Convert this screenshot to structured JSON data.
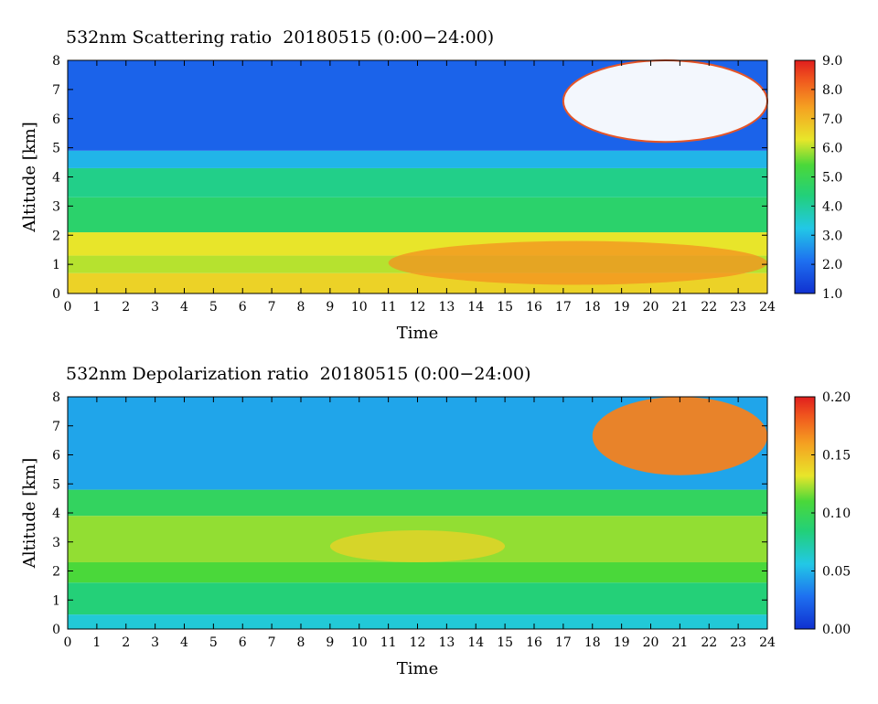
{
  "chart_data": [
    {
      "type": "heatmap",
      "title": "532nm Scattering ratio  20180515 (0:00−24:00)",
      "xlabel": "Time",
      "ylabel": "Altitude [km]",
      "xlim": [
        0,
        24
      ],
      "ylim": [
        0,
        8
      ],
      "x_ticks": [
        "0",
        "1",
        "2",
        "3",
        "4",
        "5",
        "6",
        "7",
        "8",
        "9",
        "10",
        "11",
        "12",
        "13",
        "14",
        "15",
        "16",
        "17",
        "18",
        "19",
        "20",
        "21",
        "22",
        "23",
        "24"
      ],
      "y_ticks": [
        "0",
        "1",
        "2",
        "3",
        "4",
        "5",
        "6",
        "7",
        "8"
      ],
      "colorbar": {
        "min": 1.0,
        "max": 9.0,
        "ticks": [
          "1.0",
          "2.0",
          "3.0",
          "4.0",
          "5.0",
          "6.0",
          "7.0",
          "8.0",
          "9.0"
        ]
      },
      "layers": [
        {
          "altitude_km": [
            0.0,
            0.7
          ],
          "value": 6.6
        },
        {
          "altitude_km": [
            0.7,
            1.3
          ],
          "value": 6.0
        },
        {
          "altitude_km": [
            1.3,
            2.1
          ],
          "value": 6.3
        },
        {
          "altitude_km": [
            2.1,
            3.3
          ],
          "value": 4.6
        },
        {
          "altitude_km": [
            3.3,
            4.3
          ],
          "value": 4.2
        },
        {
          "altitude_km": [
            4.3,
            4.9
          ],
          "value": 3.0
        },
        {
          "altitude_km": [
            4.9,
            8.0
          ],
          "value": 1.9
        }
      ],
      "features": [
        {
          "label": "cloud",
          "time_h": [
            17,
            24
          ],
          "altitude_km": [
            5.2,
            8.0
          ],
          "value": ">9"
        },
        {
          "label": "enhanced",
          "time_h": [
            11,
            24
          ],
          "altitude_km": [
            0.3,
            1.8
          ],
          "value": 7.6
        }
      ]
    },
    {
      "type": "heatmap",
      "title": "532nm Depolarization ratio  20180515 (0:00−24:00)",
      "xlabel": "Time",
      "ylabel": "Altitude [km]",
      "xlim": [
        0,
        24
      ],
      "ylim": [
        0,
        8
      ],
      "x_ticks": [
        "0",
        "1",
        "2",
        "3",
        "4",
        "5",
        "6",
        "7",
        "8",
        "9",
        "10",
        "11",
        "12",
        "13",
        "14",
        "15",
        "16",
        "17",
        "18",
        "19",
        "20",
        "21",
        "22",
        "23",
        "24"
      ],
      "y_ticks": [
        "0",
        "1",
        "2",
        "3",
        "4",
        "5",
        "6",
        "7",
        "8"
      ],
      "colorbar": {
        "min": 0.0,
        "max": 0.2,
        "ticks": [
          "0.00",
          "0.05",
          "0.10",
          "0.15",
          "0.20"
        ]
      },
      "layers": [
        {
          "altitude_km": [
            0.0,
            0.5
          ],
          "value": 0.06
        },
        {
          "altitude_km": [
            0.5,
            1.6
          ],
          "value": 0.085
        },
        {
          "altitude_km": [
            1.6,
            2.3
          ],
          "value": 0.11
        },
        {
          "altitude_km": [
            2.3,
            3.9
          ],
          "value": 0.12
        },
        {
          "altitude_km": [
            3.9,
            4.8
          ],
          "value": 0.095
        },
        {
          "altitude_km": [
            4.8,
            8.0
          ],
          "value": 0.045
        }
      ],
      "features": [
        {
          "label": "enhanced",
          "time_h": [
            9,
            15
          ],
          "altitude_km": [
            2.3,
            3.4
          ],
          "value": 0.14
        },
        {
          "label": "cloud",
          "time_h": [
            18,
            24
          ],
          "altitude_km": [
            5.3,
            8.0
          ],
          "value": 0.17
        }
      ]
    }
  ]
}
